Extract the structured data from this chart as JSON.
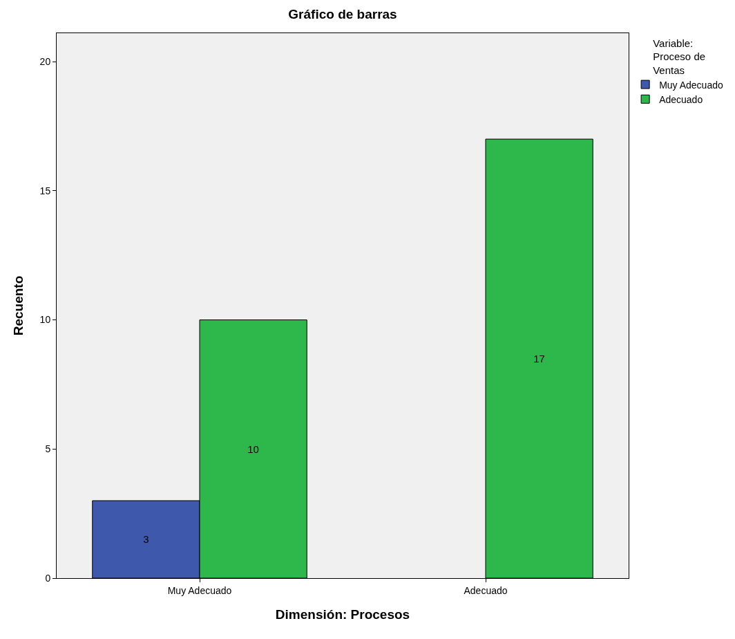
{
  "chart_data": {
    "type": "bar",
    "title": "Gráfico de barras",
    "xlabel": "Dimensión: Procesos",
    "ylabel": "Recuento",
    "legend_title": "Variable: Proceso de Ventas",
    "categories": [
      "Muy Adecuado",
      "Adecuado"
    ],
    "series": [
      {
        "name": "Muy Adecuado",
        "color": "#3e58ac",
        "values": [
          3,
          null
        ]
      },
      {
        "name": "Adecuado",
        "color": "#2eb84b",
        "values": [
          10,
          17
        ]
      }
    ],
    "ylim": [
      0,
      21.1
    ],
    "yticks": [
      0,
      5,
      10,
      15,
      20
    ],
    "grid": false,
    "legend": "top right",
    "data_labels": true
  }
}
